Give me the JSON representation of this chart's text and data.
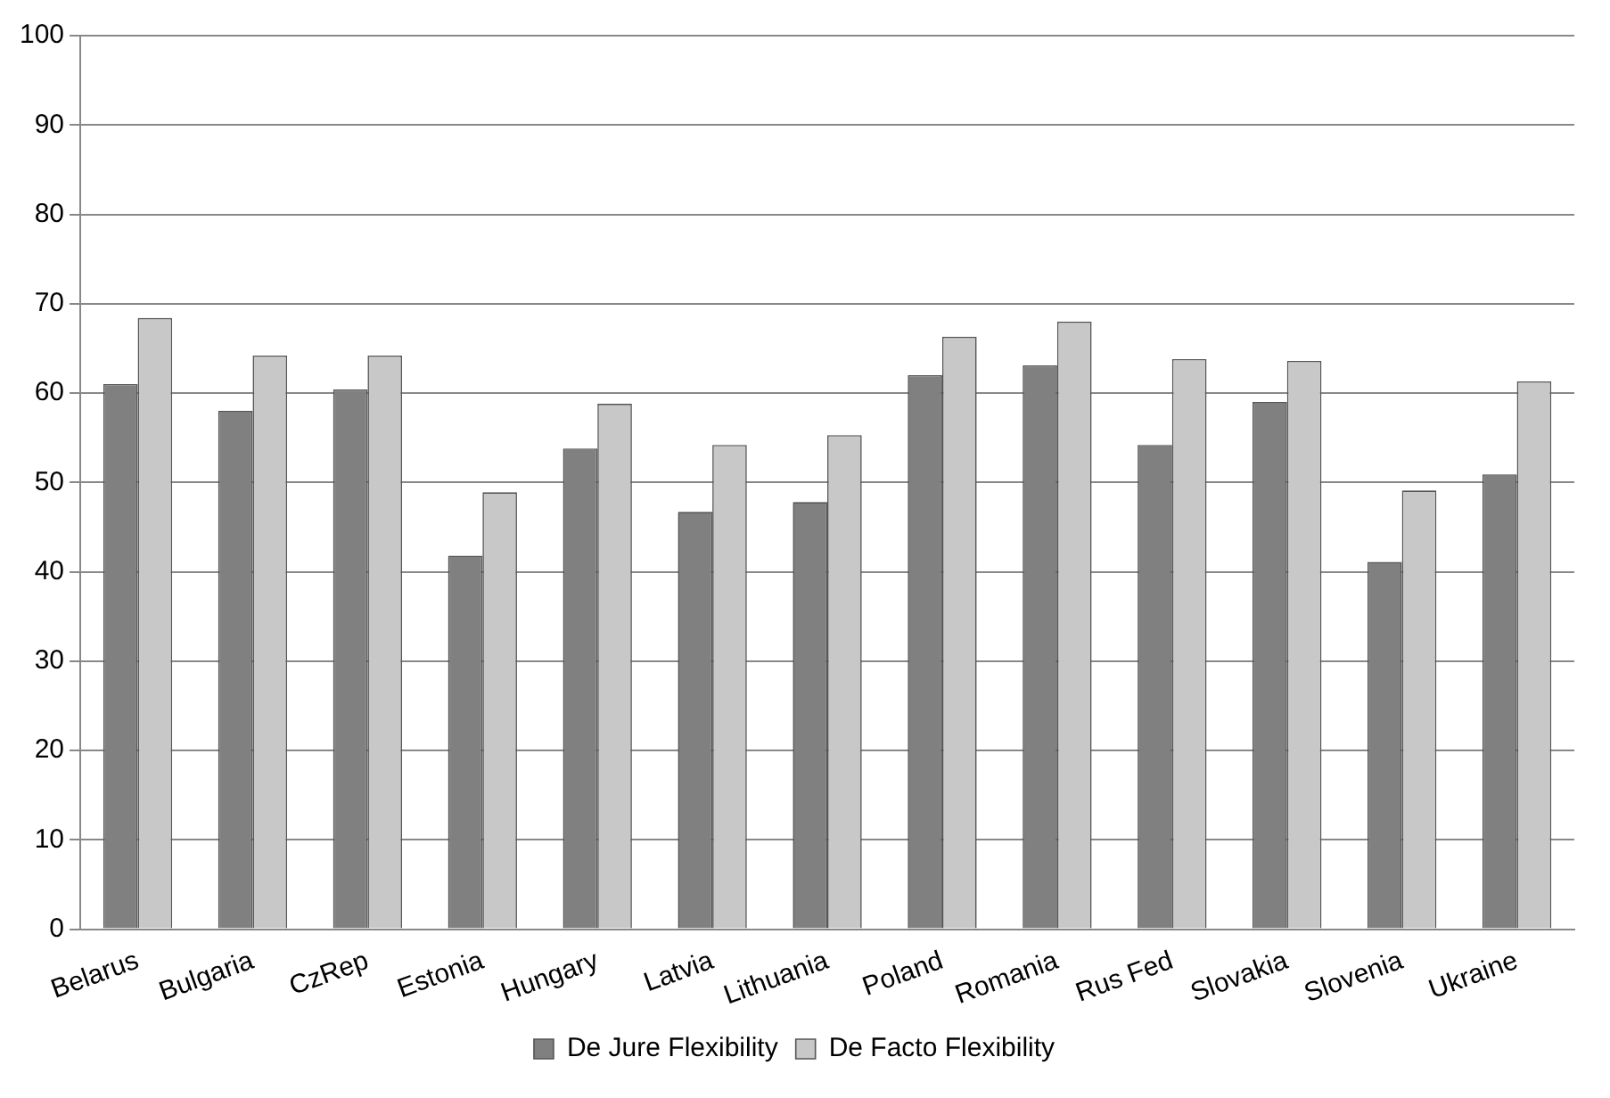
{
  "chart_data": {
    "type": "bar",
    "categories": [
      "Belarus",
      "Bulgaria",
      "CzRep",
      "Estonia",
      "Hungary",
      "Latvia",
      "Lithuania",
      "Poland",
      "Romania",
      "Rus Fed",
      "Slovakia",
      "Slovenia",
      "Ukraine"
    ],
    "series": [
      {
        "name": "De Jure Flexibility",
        "color": "#808080",
        "values": [
          61,
          58,
          60.4,
          41.8,
          53.8,
          46.7,
          47.8,
          62,
          63.1,
          54.2,
          59,
          41.1,
          50.9
        ]
      },
      {
        "name": "De Facto Flexibility",
        "color": "#c8c8c8",
        "values": [
          68.4,
          64.2,
          64.2,
          48.9,
          58.8,
          54.2,
          55.3,
          66.3,
          68,
          63.8,
          63.6,
          49.1,
          61.3
        ]
      }
    ],
    "ylim": [
      0,
      100
    ],
    "yticks": [
      0,
      10,
      20,
      30,
      40,
      50,
      60,
      70,
      80,
      90,
      100
    ],
    "grid": "y",
    "legend": "bottom"
  }
}
